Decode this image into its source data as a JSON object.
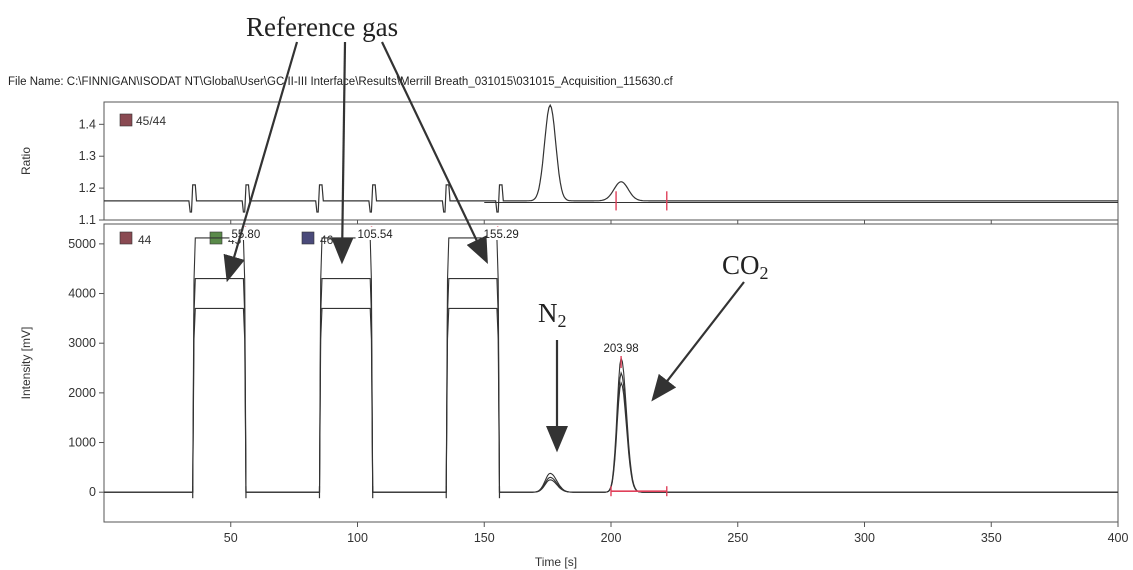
{
  "header": {
    "file_name": "File Name: C:\\FINNIGAN\\ISODAT NT\\Global\\User\\GC II-III Interface\\Results\\Merrill Breath_031015\\031015_Acquisition_115630.cf"
  },
  "annotations": {
    "reference_gas": "Reference gas",
    "n2_main": "N",
    "n2_sub": "2",
    "co2_main": "CO",
    "co2_sub": "2"
  },
  "colors": {
    "trace": "#333333",
    "marker": "#e0405a",
    "legend_44": "#8a4a52",
    "legend_45": "#5a8a4a",
    "legend_46": "#4a4a7a",
    "legend_ratio": "#8a4a52"
  },
  "chart_data": [
    {
      "type": "line",
      "panel": "ratio",
      "ylabel": "Ratio",
      "ylim": [
        1.1,
        1.47
      ],
      "yticks": [
        1.1,
        1.2,
        1.3,
        1.4
      ],
      "xlim": [
        0,
        400
      ],
      "legend": [
        {
          "name": "45/44",
          "color": "#8a4a52"
        }
      ],
      "baseline": 1.16,
      "features": [
        {
          "kind": "blip",
          "x": 35
        },
        {
          "kind": "blip",
          "x": 56
        },
        {
          "kind": "blip",
          "x": 85
        },
        {
          "kind": "blip",
          "x": 106
        },
        {
          "kind": "blip",
          "x": 135
        },
        {
          "kind": "blip",
          "x": 156
        },
        {
          "kind": "peak",
          "x": 176,
          "y": 1.46
        },
        {
          "kind": "peak",
          "x": 204,
          "y": 1.22
        }
      ]
    },
    {
      "type": "line",
      "panel": "intensity",
      "ylabel": "Intensity [mV]",
      "xlabel": "Time [s]",
      "xlim": [
        0,
        400
      ],
      "ylim": [
        -600,
        5400
      ],
      "xticks": [
        50,
        100,
        150,
        200,
        250,
        300,
        350,
        400
      ],
      "yticks": [
        0,
        1000,
        2000,
        3000,
        4000,
        5000
      ],
      "legend": [
        {
          "name": "44",
          "color": "#8a4a52"
        },
        {
          "name": "45",
          "color": "#5a8a4a"
        },
        {
          "name": "46",
          "color": "#4a4a7a"
        }
      ],
      "series": [
        {
          "name": "44",
          "plateaus": [
            [
              35,
              56,
              5120
            ],
            [
              85,
              106,
              5120
            ],
            [
              135,
              156,
              5120
            ]
          ],
          "peaks": [
            [
              176,
              380
            ],
            [
              204,
              2700
            ]
          ]
        },
        {
          "name": "45",
          "plateaus": [
            [
              35,
              56,
              4300
            ],
            [
              85,
              106,
              4300
            ],
            [
              135,
              156,
              4300
            ]
          ],
          "peaks": [
            [
              176,
              300
            ],
            [
              204,
              2400
            ]
          ]
        },
        {
          "name": "46",
          "plateaus": [
            [
              35,
              56,
              3700
            ],
            [
              85,
              106,
              3700
            ],
            [
              135,
              156,
              3700
            ]
          ],
          "peaks": [
            [
              176,
              250
            ],
            [
              204,
              2200
            ]
          ]
        }
      ],
      "peak_labels": [
        {
          "x": 55.8,
          "label": "55.80"
        },
        {
          "x": 105.54,
          "label": "105.54"
        },
        {
          "x": 155.29,
          "label": "155.29"
        },
        {
          "x": 203.98,
          "label": "203.98"
        }
      ]
    }
  ]
}
